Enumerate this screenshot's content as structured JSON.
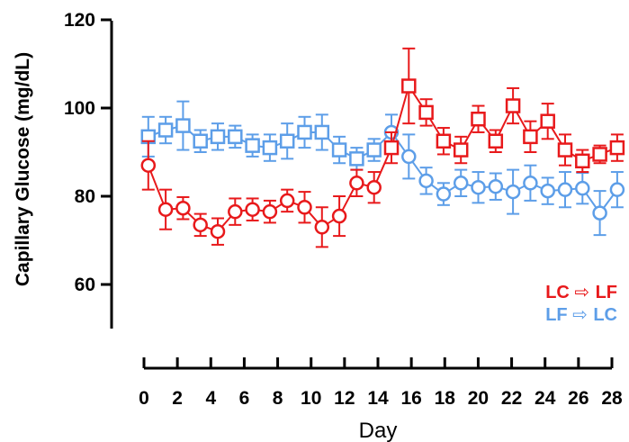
{
  "chart_data": {
    "type": "line",
    "title": "",
    "xlabel": "Day",
    "ylabel": "Capillary Glucose (mg/dL)",
    "xlim": [
      0,
      28
    ],
    "ylim": [
      60,
      120
    ],
    "x_ticks": [
      0,
      2,
      4,
      6,
      8,
      10,
      12,
      14,
      16,
      18,
      20,
      22,
      24,
      26,
      28
    ],
    "x_tick_labels": [
      "0",
      "2",
      "4",
      "6",
      "8",
      "10",
      "12",
      "14",
      "16",
      "18",
      "20",
      "22",
      "24",
      "26",
      "28"
    ],
    "y_ticks": [
      60,
      80,
      100,
      120
    ],
    "y_tick_labels": [
      "60",
      "80",
      "100",
      "120"
    ],
    "grid": false,
    "legend_position": "bottom-right",
    "series": [
      {
        "legend_before": "LC",
        "legend_after": "LF",
        "legend_arrow": "⇨",
        "color": "#e8191b",
        "marker": "circle-then-square",
        "x": [
          1,
          2,
          3,
          4,
          5,
          6,
          7,
          8,
          9,
          10,
          11,
          12,
          13,
          14,
          15,
          16,
          17,
          18,
          19,
          20,
          21,
          22,
          23,
          24,
          25,
          26,
          27,
          28
        ],
        "y": [
          87,
          77,
          77.3,
          73.5,
          72,
          76.5,
          77,
          76.5,
          79,
          77.5,
          73,
          75.5,
          83,
          82,
          91,
          105,
          99,
          92.5,
          90.5,
          97.5,
          92.5,
          100.5,
          93.5,
          97,
          90.5,
          88,
          89.5,
          91
        ],
        "error": [
          5.5,
          4.5,
          2.5,
          2.5,
          3,
          3,
          2.5,
          2.5,
          2.5,
          3.5,
          4.5,
          4.5,
          3,
          3.5,
          3.5,
          8.5,
          3,
          3,
          3,
          3,
          2.5,
          4,
          3.5,
          4,
          3.5,
          2.5,
          2,
          3
        ],
        "marker_change_after_x": 14
      },
      {
        "legend_before": "LF",
        "legend_after": "LC",
        "legend_arrow": "⇨",
        "color": "#5d9ee8",
        "marker": "square-then-circle",
        "x": [
          1,
          2,
          3,
          4,
          5,
          6,
          7,
          8,
          9,
          10,
          11,
          12,
          13,
          14,
          15,
          16,
          17,
          18,
          19,
          20,
          21,
          22,
          23,
          24,
          25,
          26,
          27,
          28
        ],
        "y": [
          93.5,
          95,
          96,
          92.5,
          93.5,
          93.5,
          91.5,
          91,
          92.5,
          94.5,
          94.5,
          90.5,
          88.5,
          90.5,
          94.5,
          89,
          83.5,
          80.5,
          83,
          82,
          82.2,
          81,
          83,
          81.2,
          81.5,
          81.8,
          76.2,
          81.5
        ],
        "error": [
          4.5,
          3,
          5.5,
          2.5,
          3,
          2.5,
          2.5,
          3,
          4,
          3.5,
          4,
          3,
          2.5,
          2.5,
          4,
          5,
          3,
          2.5,
          3,
          3.5,
          3,
          5,
          4,
          3,
          4,
          3.5,
          5,
          4
        ],
        "marker_change_after_x": 14
      }
    ]
  }
}
